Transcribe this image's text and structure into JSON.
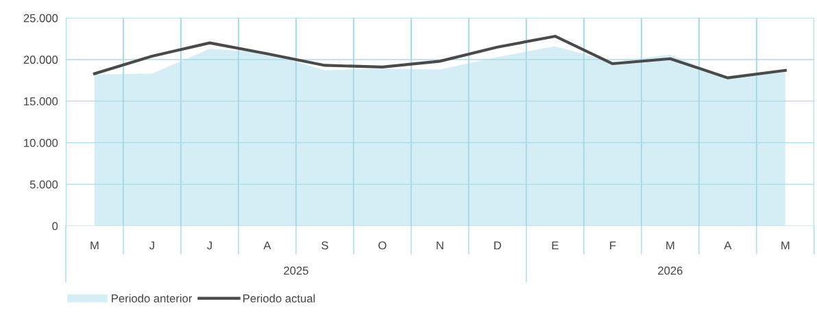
{
  "chart_data": {
    "type": "area",
    "categories": [
      "M",
      "J",
      "J",
      "A",
      "S",
      "O",
      "N",
      "D",
      "E",
      "F",
      "M",
      "A",
      "M"
    ],
    "series": [
      {
        "name": "Periodo anterior",
        "color": "#d5edf4",
        "values": [
          18200,
          18300,
          21300,
          20800,
          18700,
          18900,
          18800,
          20300,
          21600,
          19700,
          20600,
          17800,
          18500
        ]
      },
      {
        "name": "Periodo actual",
        "type": "line",
        "color": "#4a4a4a",
        "values": [
          18300,
          20400,
          22000,
          20700,
          19300,
          19100,
          19800,
          21500,
          22800,
          19500,
          20100,
          17800,
          18700
        ]
      }
    ],
    "ylim": [
      0,
      25000
    ],
    "yticks": [
      0,
      {
        "value": 5000,
        "label": "5.000"
      },
      {
        "value": 10000,
        "label": "10.000"
      },
      {
        "value": 15000,
        "label": "15.000"
      },
      {
        "value": 20000,
        "label": "20.000"
      },
      {
        "value": 25000,
        "label": "25.000"
      }
    ],
    "annotations": [
      "2025",
      "2026"
    ],
    "grid": true,
    "legend": "bottom",
    "marker": "none",
    "line_style": "solid"
  }
}
